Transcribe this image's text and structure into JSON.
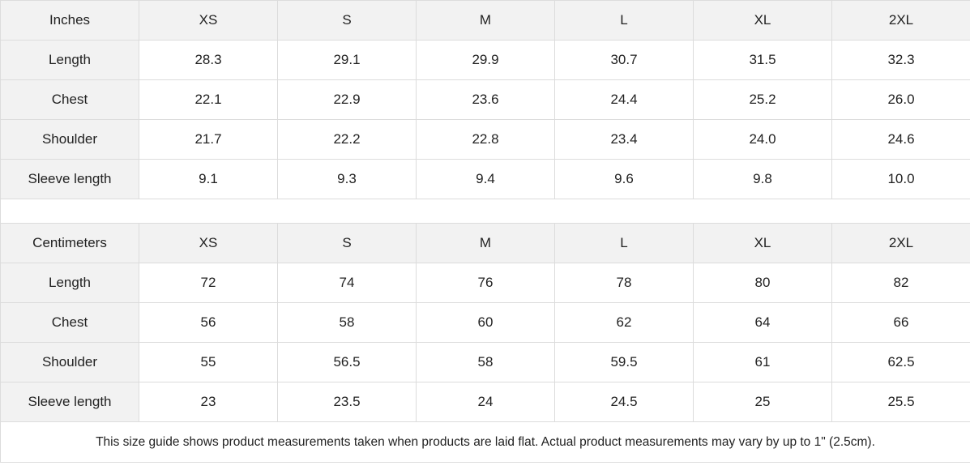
{
  "tables": [
    {
      "unit": "Inches",
      "sizes": [
        "XS",
        "S",
        "M",
        "L",
        "XL",
        "2XL"
      ],
      "rows": [
        {
          "label": "Length",
          "values": [
            "28.3",
            "29.1",
            "29.9",
            "30.7",
            "31.5",
            "32.3"
          ]
        },
        {
          "label": "Chest",
          "values": [
            "22.1",
            "22.9",
            "23.6",
            "24.4",
            "25.2",
            "26.0"
          ]
        },
        {
          "label": "Shoulder",
          "values": [
            "21.7",
            "22.2",
            "22.8",
            "23.4",
            "24.0",
            "24.6"
          ]
        },
        {
          "label": "Sleeve length",
          "values": [
            "9.1",
            "9.3",
            "9.4",
            "9.6",
            "9.8",
            "10.0"
          ]
        }
      ]
    },
    {
      "unit": "Centimeters",
      "sizes": [
        "XS",
        "S",
        "M",
        "L",
        "XL",
        "2XL"
      ],
      "rows": [
        {
          "label": "Length",
          "values": [
            "72",
            "74",
            "76",
            "78",
            "80",
            "82"
          ]
        },
        {
          "label": "Chest",
          "values": [
            "56",
            "58",
            "60",
            "62",
            "64",
            "66"
          ]
        },
        {
          "label": "Shoulder",
          "values": [
            "55",
            "56.5",
            "58",
            "59.5",
            "61",
            "62.5"
          ]
        },
        {
          "label": "Sleeve length",
          "values": [
            "23",
            "23.5",
            "24",
            "24.5",
            "25",
            "25.5"
          ]
        }
      ]
    }
  ],
  "note": "This size guide shows product measurements taken when products are laid flat.  Actual product measurements may vary by up to 1\" (2.5cm).",
  "colors": {
    "header_bg": "#f2f2f2",
    "border": "#dcdcdc"
  }
}
